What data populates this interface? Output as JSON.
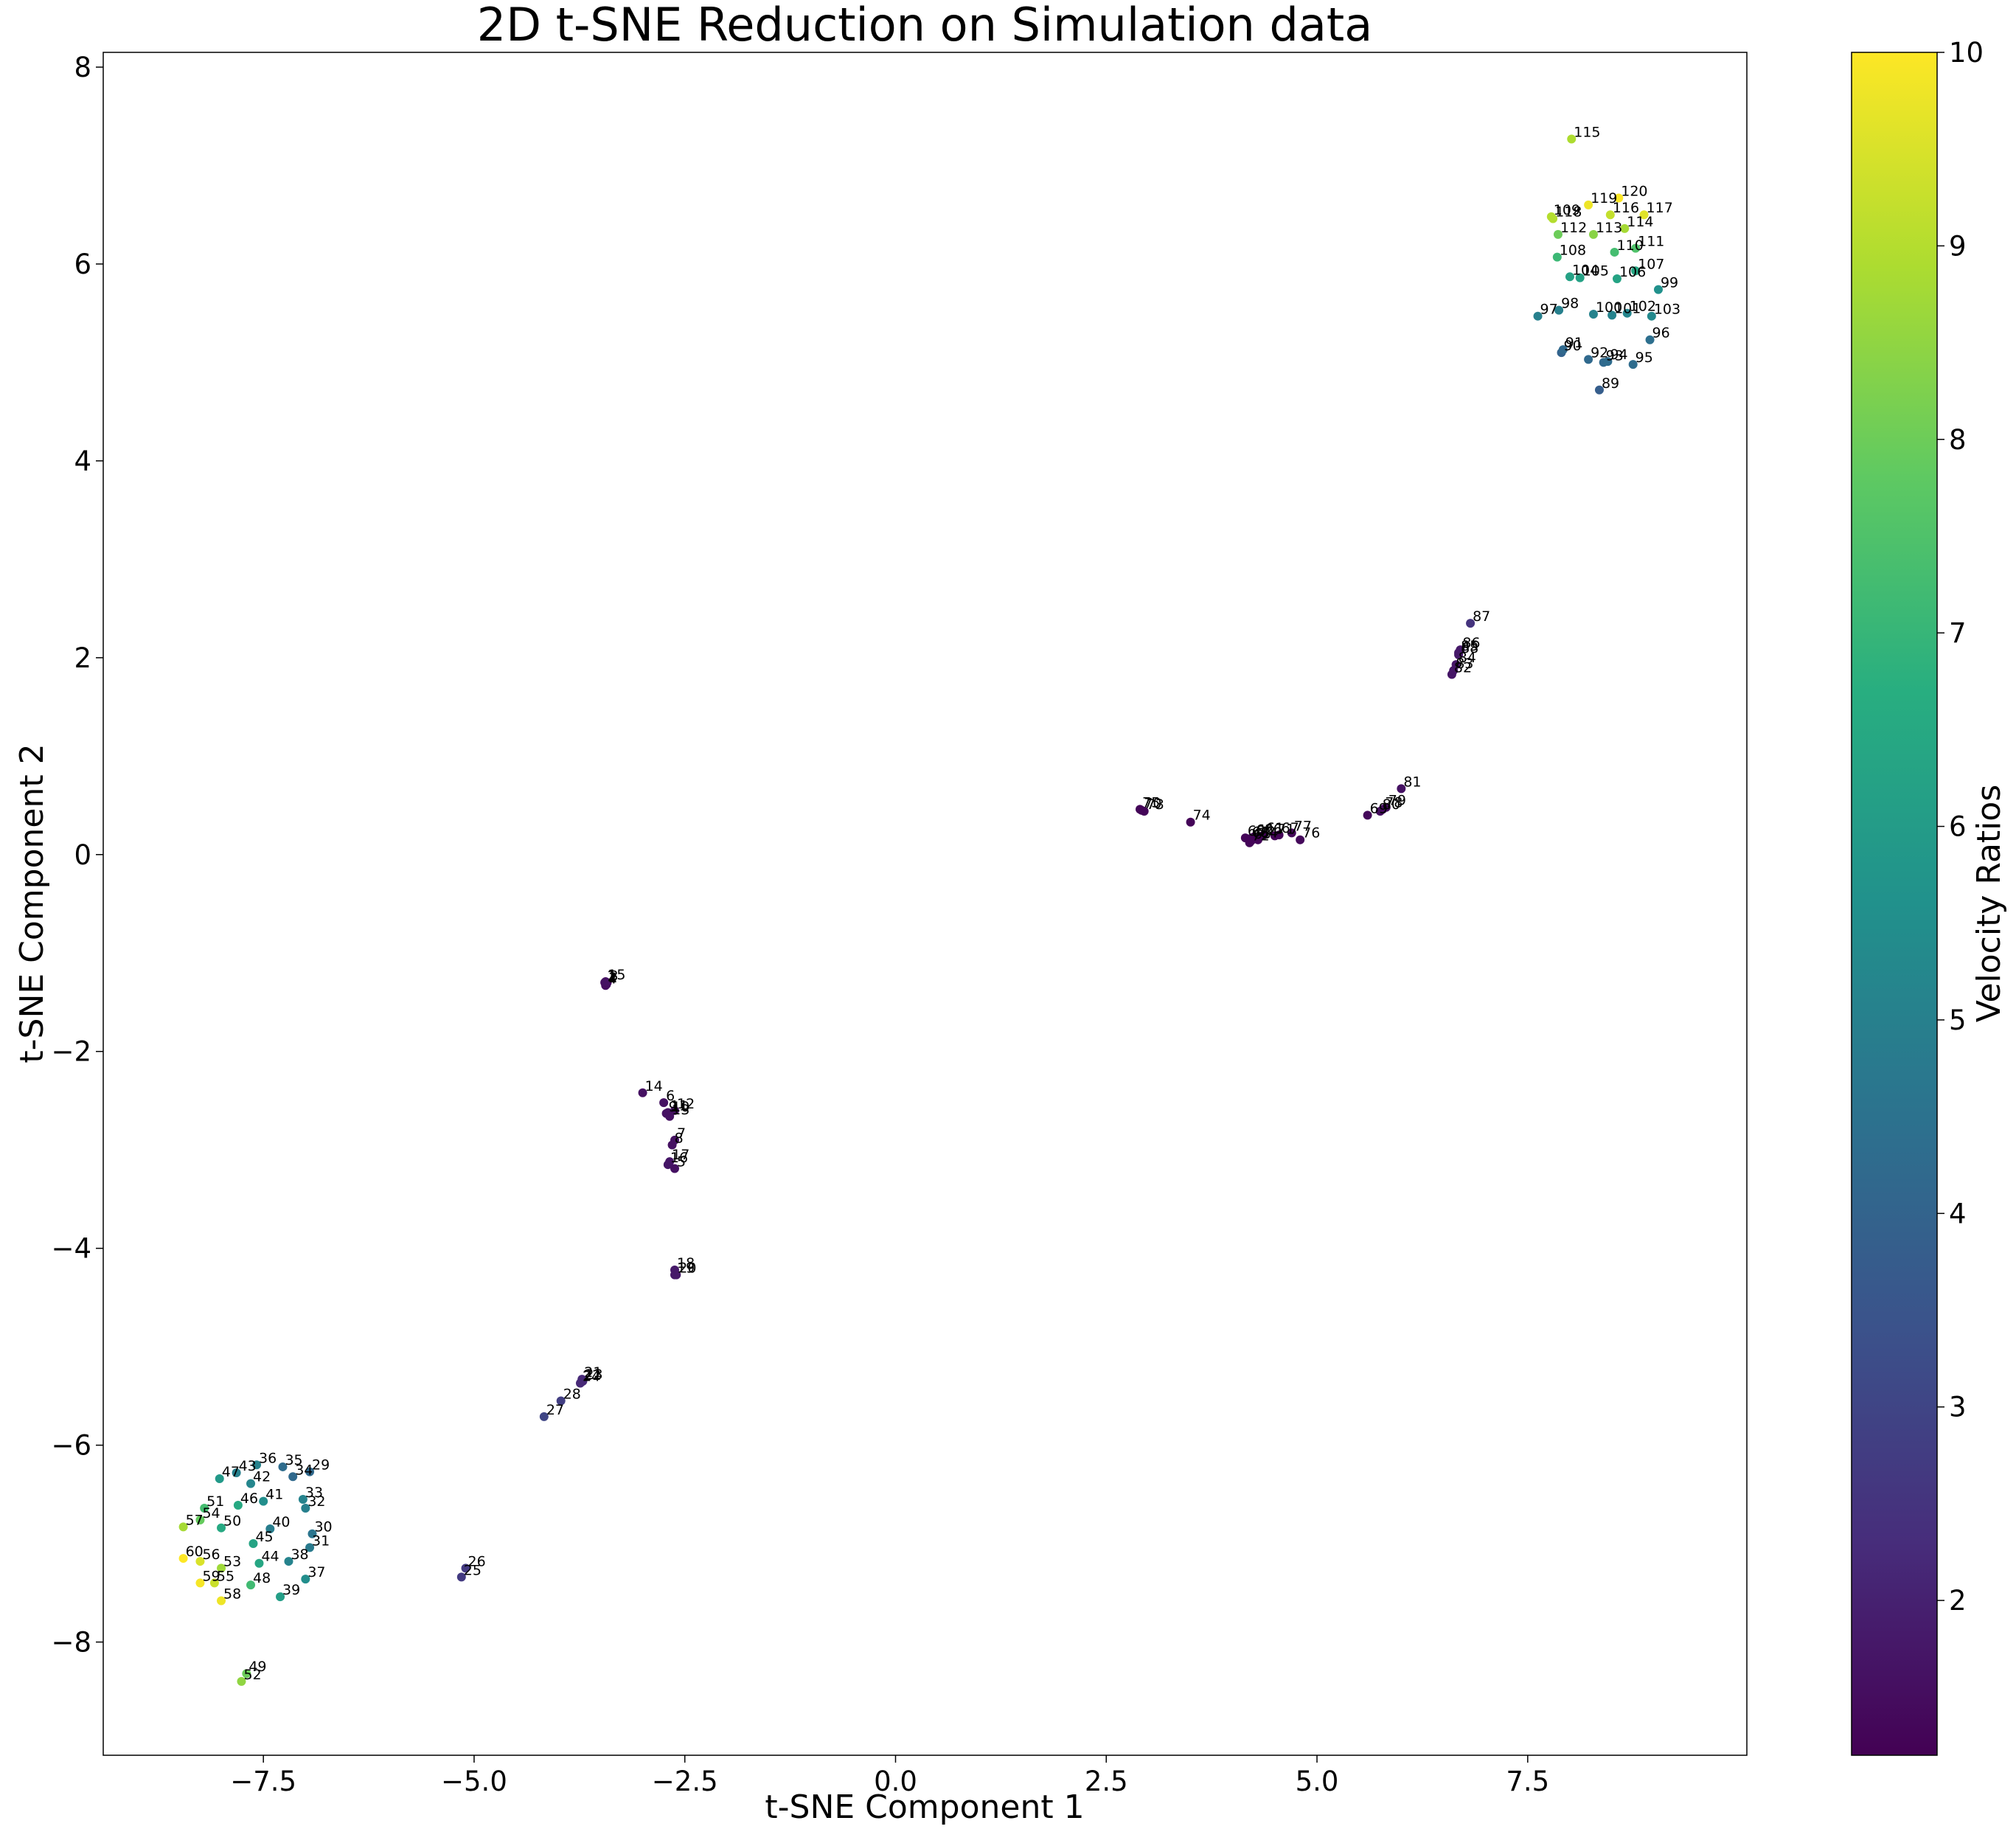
{
  "chart_data": {
    "type": "scatter",
    "title": "2D t-SNE Reduction on Simulation data",
    "xlabel": "t-SNE Component 1",
    "ylabel": "t-SNE Component 2",
    "xlim": [
      -9.4,
      10.1
    ],
    "ylim": [
      -9.15,
      8.15
    ],
    "xticks": [
      -7.5,
      -5.0,
      -2.5,
      0.0,
      2.5,
      5.0,
      7.5
    ],
    "xtick_labels": [
      "−7.5",
      "−5.0",
      "−2.5",
      "0.0",
      "2.5",
      "5.0",
      "7.5"
    ],
    "yticks": [
      -8,
      -6,
      -4,
      -2,
      0,
      2,
      4,
      6,
      8
    ],
    "ytick_labels": [
      "−8",
      "−6",
      "−4",
      "−2",
      "0",
      "2",
      "4",
      "6",
      "8"
    ],
    "grid": false,
    "colorbar": {
      "label": "Velocity Ratios",
      "range": [
        1.2,
        10
      ],
      "colormap": "viridis",
      "ticks": [
        2,
        3,
        4,
        5,
        6,
        7,
        8,
        9,
        10
      ],
      "tick_labels": [
        "2",
        "3",
        "4",
        "5",
        "6",
        "7",
        "8",
        "9",
        "10"
      ]
    },
    "points": [
      {
        "label": "1",
        "x": -3.45,
        "y": -1.3,
        "v": 1.5
      },
      {
        "label": "2",
        "x": -3.43,
        "y": -1.32,
        "v": 1.5
      },
      {
        "label": "3",
        "x": -3.42,
        "y": -1.3,
        "v": 1.5
      },
      {
        "label": "4",
        "x": -3.44,
        "y": -1.33,
        "v": 1.5
      },
      {
        "label": "5",
        "x": -2.62,
        "y": -3.19,
        "v": 1.6
      },
      {
        "label": "6",
        "x": -2.75,
        "y": -2.52,
        "v": 1.6
      },
      {
        "label": "7",
        "x": -2.62,
        "y": -2.9,
        "v": 1.6
      },
      {
        "label": "8",
        "x": -2.65,
        "y": -2.95,
        "v": 1.6
      },
      {
        "label": "9",
        "x": -2.72,
        "y": -2.63,
        "v": 1.6
      },
      {
        "label": "10",
        "x": -2.68,
        "y": -2.63,
        "v": 1.6
      },
      {
        "label": "11",
        "x": -2.7,
        "y": -2.62,
        "v": 1.6
      },
      {
        "label": "12",
        "x": -2.62,
        "y": -2.6,
        "v": 1.6
      },
      {
        "label": "13",
        "x": -2.68,
        "y": -2.66,
        "v": 1.6
      },
      {
        "label": "14",
        "x": -3.0,
        "y": -2.42,
        "v": 1.6
      },
      {
        "label": "15",
        "x": -3.44,
        "y": -1.29,
        "v": 1.6
      },
      {
        "label": "16",
        "x": -2.7,
        "y": -3.15,
        "v": 1.7
      },
      {
        "label": "17",
        "x": -2.68,
        "y": -3.12,
        "v": 1.7
      },
      {
        "label": "18",
        "x": -2.62,
        "y": -4.22,
        "v": 1.8
      },
      {
        "label": "19",
        "x": -2.62,
        "y": -4.27,
        "v": 1.8
      },
      {
        "label": "20",
        "x": -2.6,
        "y": -4.27,
        "v": 1.8
      },
      {
        "label": "21",
        "x": -3.72,
        "y": -5.33,
        "v": 2.2
      },
      {
        "label": "22",
        "x": -3.73,
        "y": -5.36,
        "v": 2.2
      },
      {
        "label": "23",
        "x": -3.71,
        "y": -5.35,
        "v": 2.2
      },
      {
        "label": "24",
        "x": -3.74,
        "y": -5.37,
        "v": 2.2
      },
      {
        "label": "25",
        "x": -5.15,
        "y": -7.34,
        "v": 2.7
      },
      {
        "label": "26",
        "x": -5.1,
        "y": -7.25,
        "v": 2.7
      },
      {
        "label": "27",
        "x": -4.17,
        "y": -5.71,
        "v": 3.0
      },
      {
        "label": "28",
        "x": -3.97,
        "y": -5.55,
        "v": 2.8
      },
      {
        "label": "29",
        "x": -6.95,
        "y": -6.27,
        "v": 4.2
      },
      {
        "label": "30",
        "x": -6.92,
        "y": -6.9,
        "v": 4.6
      },
      {
        "label": "31",
        "x": -6.95,
        "y": -7.04,
        "v": 4.8
      },
      {
        "label": "32",
        "x": -7.0,
        "y": -6.64,
        "v": 5.0
      },
      {
        "label": "33",
        "x": -7.03,
        "y": -6.55,
        "v": 5.1
      },
      {
        "label": "34",
        "x": -7.15,
        "y": -6.32,
        "v": 4.2
      },
      {
        "label": "35",
        "x": -7.27,
        "y": -6.22,
        "v": 4.3
      },
      {
        "label": "36",
        "x": -7.58,
        "y": -6.2,
        "v": 5.1
      },
      {
        "label": "37",
        "x": -7.0,
        "y": -7.36,
        "v": 5.5
      },
      {
        "label": "38",
        "x": -7.2,
        "y": -7.18,
        "v": 5.1
      },
      {
        "label": "39",
        "x": -7.3,
        "y": -7.54,
        "v": 6.1
      },
      {
        "label": "40",
        "x": -7.42,
        "y": -6.85,
        "v": 4.9
      },
      {
        "label": "41",
        "x": -7.5,
        "y": -6.57,
        "v": 5.5
      },
      {
        "label": "42",
        "x": -7.65,
        "y": -6.39,
        "v": 5.2
      },
      {
        "label": "43",
        "x": -7.82,
        "y": -6.28,
        "v": 5.0
      },
      {
        "label": "44",
        "x": -7.55,
        "y": -7.2,
        "v": 6.4
      },
      {
        "label": "45",
        "x": -7.62,
        "y": -7.0,
        "v": 6.3
      },
      {
        "label": "46",
        "x": -7.8,
        "y": -6.61,
        "v": 6.5
      },
      {
        "label": "47",
        "x": -8.02,
        "y": -6.34,
        "v": 5.9
      },
      {
        "label": "48",
        "x": -7.65,
        "y": -7.42,
        "v": 7.2
      },
      {
        "label": "49",
        "x": -7.7,
        "y": -8.32,
        "v": 8.0
      },
      {
        "label": "50",
        "x": -8.0,
        "y": -6.84,
        "v": 6.5
      },
      {
        "label": "51",
        "x": -8.2,
        "y": -6.64,
        "v": 7.3
      },
      {
        "label": "52",
        "x": -7.76,
        "y": -8.4,
        "v": 8.5
      },
      {
        "label": "53",
        "x": -8.0,
        "y": -7.25,
        "v": 8.7
      },
      {
        "label": "54",
        "x": -8.25,
        "y": -6.76,
        "v": 7.9
      },
      {
        "label": "55",
        "x": -8.08,
        "y": -7.4,
        "v": 9.3
      },
      {
        "label": "56",
        "x": -8.25,
        "y": -7.18,
        "v": 9.5
      },
      {
        "label": "57",
        "x": -8.45,
        "y": -6.83,
        "v": 8.8
      },
      {
        "label": "58",
        "x": -8.0,
        "y": -7.58,
        "v": 9.8
      },
      {
        "label": "59",
        "x": -8.25,
        "y": -7.4,
        "v": 9.9
      },
      {
        "label": "60",
        "x": -8.45,
        "y": -7.15,
        "v": 10.0
      },
      {
        "label": "61",
        "x": 4.37,
        "y": 0.2,
        "v": 1.3
      },
      {
        "label": "62",
        "x": 4.25,
        "y": 0.18,
        "v": 1.3
      },
      {
        "label": "63",
        "x": 4.2,
        "y": 0.16,
        "v": 1.3
      },
      {
        "label": "64",
        "x": 4.3,
        "y": 0.15,
        "v": 1.3
      },
      {
        "label": "65",
        "x": 4.22,
        "y": 0.14,
        "v": 1.3
      },
      {
        "label": "66",
        "x": 4.35,
        "y": 0.19,
        "v": 1.3
      },
      {
        "label": "67",
        "x": 4.55,
        "y": 0.2,
        "v": 1.3
      },
      {
        "label": "68",
        "x": 4.15,
        "y": 0.17,
        "v": 1.3
      },
      {
        "label": "69",
        "x": 5.6,
        "y": 0.4,
        "v": 1.4
      },
      {
        "label": "70",
        "x": 2.92,
        "y": 0.45,
        "v": 1.3
      },
      {
        "label": "71",
        "x": 4.5,
        "y": 0.19,
        "v": 1.3
      },
      {
        "label": "72",
        "x": 4.2,
        "y": 0.12,
        "v": 1.3
      },
      {
        "label": "73",
        "x": 2.95,
        "y": 0.44,
        "v": 1.3
      },
      {
        "label": "74",
        "x": 3.5,
        "y": 0.33,
        "v": 1.3
      },
      {
        "label": "75",
        "x": 2.9,
        "y": 0.46,
        "v": 1.3
      },
      {
        "label": "76",
        "x": 4.8,
        "y": 0.15,
        "v": 1.4
      },
      {
        "label": "77",
        "x": 4.7,
        "y": 0.22,
        "v": 1.4
      },
      {
        "label": "78",
        "x": 5.78,
        "y": 0.46,
        "v": 1.5
      },
      {
        "label": "79",
        "x": 5.82,
        "y": 0.48,
        "v": 1.5
      },
      {
        "label": "80",
        "x": 5.75,
        "y": 0.44,
        "v": 1.5
      },
      {
        "label": "81",
        "x": 6.0,
        "y": 0.67,
        "v": 1.6
      },
      {
        "label": "82",
        "x": 6.6,
        "y": 1.83,
        "v": 1.7
      },
      {
        "label": "83",
        "x": 6.62,
        "y": 1.87,
        "v": 1.7
      },
      {
        "label": "84",
        "x": 6.65,
        "y": 1.93,
        "v": 1.7
      },
      {
        "label": "85",
        "x": 6.68,
        "y": 2.05,
        "v": 1.8
      },
      {
        "label": "86",
        "x": 6.7,
        "y": 2.08,
        "v": 1.8
      },
      {
        "label": "87",
        "x": 6.82,
        "y": 2.35,
        "v": 2.5
      },
      {
        "label": "88",
        "x": 6.68,
        "y": 2.03,
        "v": 1.8
      },
      {
        "label": "89",
        "x": 8.35,
        "y": 4.72,
        "v": 3.8
      },
      {
        "label": "90",
        "x": 7.9,
        "y": 5.1,
        "v": 4.0
      },
      {
        "label": "91",
        "x": 7.92,
        "y": 5.13,
        "v": 4.2
      },
      {
        "label": "92",
        "x": 8.22,
        "y": 5.03,
        "v": 4.2
      },
      {
        "label": "93",
        "x": 8.4,
        "y": 5.0,
        "v": 4.2
      },
      {
        "label": "94",
        "x": 8.45,
        "y": 5.01,
        "v": 4.3
      },
      {
        "label": "95",
        "x": 8.75,
        "y": 4.98,
        "v": 4.3
      },
      {
        "label": "96",
        "x": 8.95,
        "y": 5.23,
        "v": 4.4
      },
      {
        "label": "97",
        "x": 7.62,
        "y": 5.47,
        "v": 5.0
      },
      {
        "label": "98",
        "x": 7.87,
        "y": 5.53,
        "v": 5.0
      },
      {
        "label": "99",
        "x": 9.05,
        "y": 5.74,
        "v": 5.6
      },
      {
        "label": "100",
        "x": 8.28,
        "y": 5.49,
        "v": 5.1
      },
      {
        "label": "101",
        "x": 8.5,
        "y": 5.48,
        "v": 5.1
      },
      {
        "label": "102",
        "x": 8.68,
        "y": 5.5,
        "v": 5.2
      },
      {
        "label": "103",
        "x": 8.97,
        "y": 5.47,
        "v": 5.3
      },
      {
        "label": "104",
        "x": 8.0,
        "y": 5.87,
        "v": 6.2
      },
      {
        "label": "105",
        "x": 8.12,
        "y": 5.86,
        "v": 6.2
      },
      {
        "label": "106",
        "x": 8.56,
        "y": 5.85,
        "v": 6.3
      },
      {
        "label": "107",
        "x": 8.78,
        "y": 5.93,
        "v": 6.4
      },
      {
        "label": "108",
        "x": 7.85,
        "y": 6.07,
        "v": 7.1
      },
      {
        "label": "109",
        "x": 7.78,
        "y": 6.48,
        "v": 9.0
      },
      {
        "label": "110",
        "x": 8.53,
        "y": 6.12,
        "v": 7.3
      },
      {
        "label": "111",
        "x": 8.78,
        "y": 6.16,
        "v": 7.5
      },
      {
        "label": "112",
        "x": 7.86,
        "y": 6.3,
        "v": 8.0
      },
      {
        "label": "113",
        "x": 8.28,
        "y": 6.3,
        "v": 8.4
      },
      {
        "label": "114",
        "x": 8.65,
        "y": 6.36,
        "v": 8.8
      },
      {
        "label": "115",
        "x": 8.02,
        "y": 7.27,
        "v": 8.9
      },
      {
        "label": "116",
        "x": 8.48,
        "y": 6.5,
        "v": 9.2
      },
      {
        "label": "117",
        "x": 8.88,
        "y": 6.5,
        "v": 9.6
      },
      {
        "label": "118",
        "x": 7.8,
        "y": 6.46,
        "v": 9.0
      },
      {
        "label": "119",
        "x": 8.22,
        "y": 6.6,
        "v": 9.8
      },
      {
        "label": "120",
        "x": 8.58,
        "y": 6.67,
        "v": 10.0
      }
    ]
  }
}
